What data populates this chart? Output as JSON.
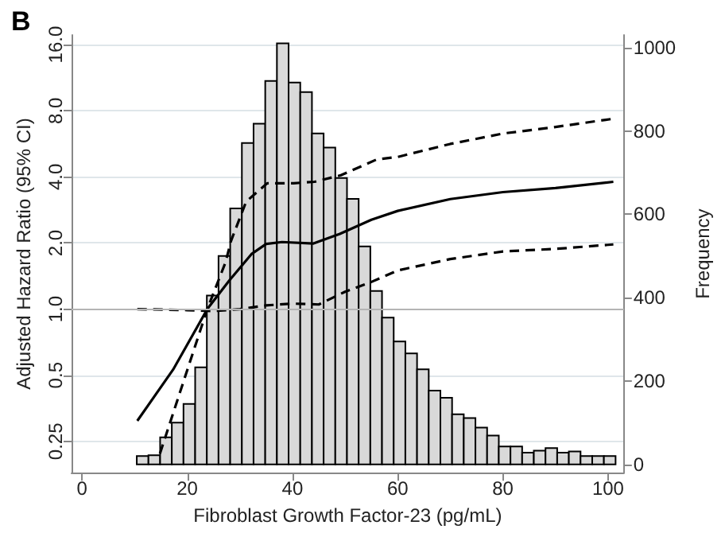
{
  "chart_data": {
    "type": "histogram",
    "title": "B",
    "xlabel": "Fibroblast Growth Factor-23 (pg/mL)",
    "ylabel": "Adjusted Hazard Ratio (95% CI)",
    "y2label": "Frequency",
    "xlim": [
      -2,
      103
    ],
    "xticks": [
      0,
      20,
      40,
      60,
      80,
      100
    ],
    "ylim": [
      0.18,
      17.7
    ],
    "yticks": [
      {
        "value": 0.25,
        "label": "0.25"
      },
      {
        "value": 0.5,
        "label": "0.5"
      },
      {
        "value": 1,
        "label": "1.0"
      },
      {
        "value": 2,
        "label": "2.0"
      },
      {
        "value": 4,
        "label": "4.0"
      },
      {
        "value": 8,
        "label": "8.0"
      },
      {
        "value": 16,
        "label": "16.0"
      }
    ],
    "y2lim": [
      -20,
      1030
    ],
    "y2ticks": [
      0,
      200,
      400,
      600,
      800,
      1000
    ],
    "log": "y",
    "grid": "y",
    "ref_lines": [
      {
        "axis": "y",
        "value": 1,
        "color": "#b4b4b4"
      }
    ],
    "series": [
      {
        "axis": "y2",
        "color": "#d9d9d9",
        "bins": [
          10.4,
          12.62,
          14.84,
          17.06,
          19.28,
          21.5,
          23.72,
          25.94,
          28.16,
          30.38,
          32.6,
          34.82,
          37.04,
          39.26,
          41.48,
          43.7,
          45.92,
          48.14,
          50.36,
          52.58,
          54.8,
          57.02,
          59.24,
          61.46,
          63.68,
          65.9,
          68.12,
          70.34,
          72.56,
          74.78,
          77.0,
          79.22,
          81.44,
          83.66,
          85.88,
          88.1,
          90.32,
          92.54,
          94.76,
          96.98,
          99.2,
          101.42
        ],
        "values": [
          20,
          22,
          65,
          100,
          145,
          233,
          405,
          500,
          614,
          771,
          817,
          920,
          1010,
          916,
          893,
          794,
          760,
          687,
          637,
          523,
          416,
          352,
          295,
          266,
          228,
          177,
          160,
          120,
          111,
          88,
          69,
          43,
          43,
          28,
          33,
          39,
          28,
          31,
          20,
          20,
          20
        ]
      },
      {
        "type": "line",
        "color": "#000000",
        "line_style": "solid",
        "x": [
          10.5,
          17.3,
          23.8,
          28,
          32.2,
          35,
          38,
          44,
          49,
          55,
          60,
          70,
          80,
          90,
          101
        ],
        "values": [
          0.31,
          0.53,
          1.0,
          1.35,
          1.78,
          1.98,
          2.02,
          1.99,
          2.2,
          2.55,
          2.8,
          3.17,
          3.41,
          3.56,
          3.8
        ]
      },
      {
        "type": "line",
        "color": "#000000",
        "line_style": "dashed",
        "x": [
          14.8,
          23.8,
          27.3,
          28.3,
          31.2,
          35.2,
          40.2,
          44.2,
          49.2,
          56,
          60,
          70,
          80,
          90,
          101
        ],
        "values": [
          0.22,
          1.0,
          1.64,
          2.04,
          3.09,
          3.74,
          3.74,
          3.8,
          4.07,
          4.8,
          4.93,
          5.65,
          6.3,
          6.75,
          7.36
        ]
      },
      {
        "type": "line",
        "color": "#000000",
        "line_style": "dashed",
        "x": [
          10.5,
          20,
          25,
          30,
          35,
          40,
          45,
          50,
          55,
          60,
          70,
          80,
          90,
          101
        ],
        "values": [
          1.0,
          0.99,
          0.98,
          1.0,
          1.04,
          1.06,
          1.05,
          1.2,
          1.33,
          1.5,
          1.69,
          1.83,
          1.88,
          1.97
        ]
      }
    ]
  }
}
